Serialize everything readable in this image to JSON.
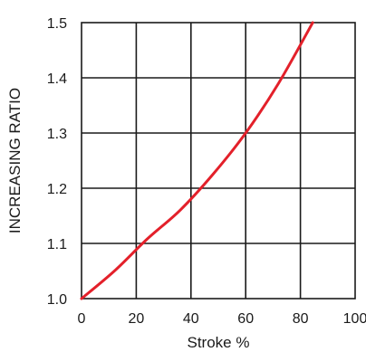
{
  "chart_data": {
    "type": "line",
    "title": "",
    "xlabel": "Stroke %",
    "ylabel": "INCREASING RATIO",
    "xlim": [
      0,
      100
    ],
    "ylim": [
      1.0,
      1.5
    ],
    "x_ticks": [
      0,
      20,
      40,
      60,
      80,
      100
    ],
    "y_ticks": [
      1.0,
      1.1,
      1.2,
      1.3,
      1.4,
      1.5
    ],
    "x_tick_labels": [
      "0",
      "20",
      "40",
      "60",
      "80",
      "100"
    ],
    "y_tick_labels": [
      "1.0",
      "1.1",
      "1.2",
      "1.3",
      "1.4",
      "1.5"
    ],
    "grid": true,
    "series": [
      {
        "color": "#e3202a",
        "x": [
          0,
          12,
          24,
          36,
          48,
          60,
          72,
          84.5
        ],
        "y": [
          1.0,
          1.05,
          1.108,
          1.16,
          1.225,
          1.3,
          1.39,
          1.5
        ]
      }
    ]
  }
}
